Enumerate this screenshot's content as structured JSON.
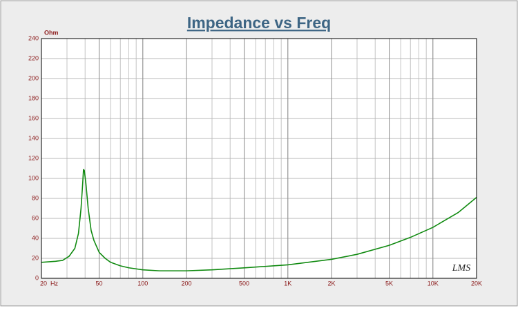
{
  "chart_data": {
    "type": "line",
    "title": "Impedance vs Freq",
    "y_label": "Ohm",
    "watermark": "LMS",
    "x": [
      20,
      25,
      28,
      31,
      34,
      36,
      37.5,
      38.5,
      39,
      39.5,
      40.5,
      42,
      44,
      46,
      50,
      55,
      60,
      70,
      80,
      100,
      130,
      200,
      300,
      500,
      1000,
      2000,
      3000,
      5000,
      7000,
      10000,
      15000,
      20000
    ],
    "series": [
      {
        "name": "Impedance",
        "color": "#108a10",
        "values": [
          16,
          17,
          18,
          22,
          30,
          45,
          70,
          95,
          109,
          108,
          95,
          70,
          48,
          38,
          26,
          20,
          16,
          12.5,
          10.5,
          8.5,
          7.5,
          7.5,
          8.5,
          10.5,
          13.5,
          19,
          24,
          33,
          41,
          51,
          66,
          81
        ]
      }
    ],
    "xlim": [
      20,
      20000
    ],
    "xscale": "log",
    "xticks": [
      {
        "value": 20,
        "label": "20  Hz"
      },
      50,
      100,
      200,
      500,
      {
        "value": 1000,
        "label": "1K"
      },
      {
        "value": 2000,
        "label": "2K"
      },
      {
        "value": 5000,
        "label": "5K"
      },
      {
        "value": 10000,
        "label": "10K"
      },
      {
        "value": 20000,
        "label": "20K"
      }
    ],
    "ylim": [
      0,
      240
    ],
    "yticks": [
      0,
      20,
      40,
      60,
      80,
      100,
      120,
      140,
      160,
      180,
      200,
      220,
      240
    ],
    "grid": true,
    "minor_grid": true
  }
}
